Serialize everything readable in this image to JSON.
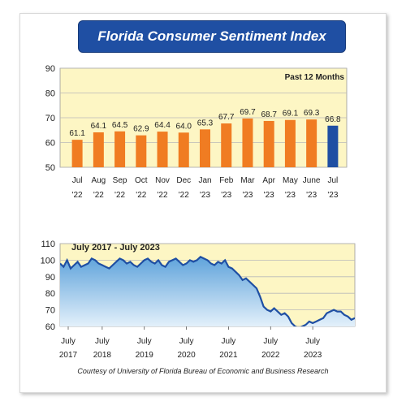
{
  "title": "Florida Consumer Sentiment Index",
  "credit": "Courtesy of University of Florida Bureau of Economic and Business Research",
  "colors": {
    "title_bg": "#1f4fa3",
    "bar": "#f07c22",
    "bar_highlight": "#1f4fa3",
    "plot_bg": "#fdf6c4",
    "area_fill": "#9fc9ea",
    "line": "#1f4fa3"
  },
  "chart_data": [
    {
      "type": "bar",
      "annotation": "Past 12 Months",
      "categories": [
        [
          "Jul",
          "'22"
        ],
        [
          "Aug",
          "'22"
        ],
        [
          "Sep",
          "'22"
        ],
        [
          "Oct",
          "'22"
        ],
        [
          "Nov",
          "'22"
        ],
        [
          "Dec",
          "'22"
        ],
        [
          "Jan",
          "'23"
        ],
        [
          "Feb",
          "'23"
        ],
        [
          "Mar",
          "'23"
        ],
        [
          "Apr",
          "'23"
        ],
        [
          "May",
          "'23"
        ],
        [
          "June",
          "'23"
        ],
        [
          "Jul",
          "'23"
        ]
      ],
      "values": [
        61.1,
        64.1,
        64.5,
        62.9,
        64.4,
        64.0,
        65.3,
        67.7,
        69.7,
        68.7,
        69.1,
        69.3,
        66.8
      ],
      "value_labels": [
        "61.1",
        "64.1",
        "64.5",
        "62.9",
        "64.4",
        "64.0",
        "65.3",
        "67.7",
        "69.7",
        "68.7",
        "69.1",
        "69.3",
        "66.8"
      ],
      "highlight_index": 12,
      "ylim": [
        50,
        90
      ],
      "yticks": [
        50,
        60,
        70,
        80,
        90
      ],
      "grid": true
    },
    {
      "type": "area",
      "annotation": "July 2017 - July 2023",
      "x_start": "2017-07",
      "ylim": [
        60,
        110
      ],
      "yticks": [
        60,
        70,
        80,
        90,
        100,
        110
      ],
      "xticks": [
        [
          "July",
          "2017"
        ],
        [
          "July",
          "2018"
        ],
        [
          "July",
          "2019"
        ],
        [
          "July",
          "2020"
        ],
        [
          "July",
          "2021"
        ],
        [
          "July",
          "2022"
        ],
        [
          "July",
          "2023"
        ]
      ],
      "grid": true,
      "values": [
        98,
        96,
        100,
        95,
        97,
        99,
        96,
        97,
        98,
        101,
        100,
        98,
        97,
        96,
        95,
        97,
        99,
        101,
        100,
        98,
        99,
        97,
        96,
        98,
        100,
        101,
        99,
        98,
        100,
        97,
        96,
        99,
        100,
        101,
        99,
        97,
        98,
        100,
        99,
        100,
        102,
        101,
        100,
        98,
        97,
        99,
        98,
        100,
        96,
        95,
        93,
        91,
        88,
        89,
        87,
        85,
        83,
        78,
        72,
        70,
        69,
        71,
        69,
        67,
        68,
        66,
        62,
        60,
        59,
        60,
        61,
        63,
        62,
        63,
        64,
        65,
        68,
        69,
        70,
        69,
        69,
        67,
        66,
        64,
        65
      ]
    }
  ]
}
